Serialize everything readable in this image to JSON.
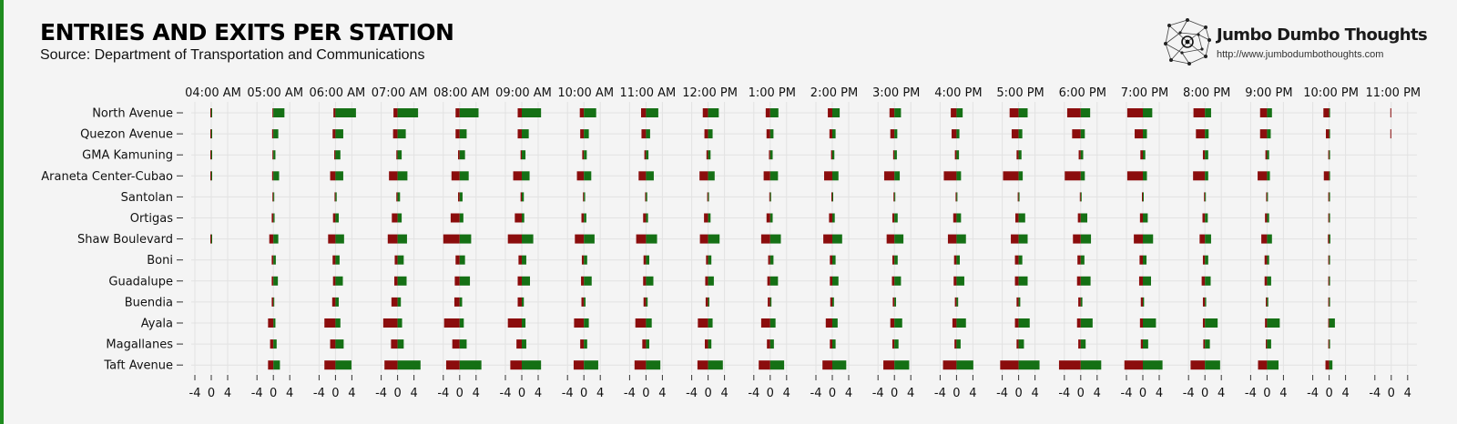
{
  "header": {
    "title": "ENTRIES AND EXITS PER STATION",
    "subtitle": "Source: Department of Transportation and Communications"
  },
  "brand": {
    "name": "Jumbo Dumbo Thoughts",
    "url": "http://www.jumbodumbothoughts.com"
  },
  "colors": {
    "exits": "#8b0d0d",
    "entries": "#157015",
    "accent_bar": "#1e8c1e",
    "background": "#f4f4f4",
    "grid": "#e2e2e2"
  },
  "chart_data": {
    "type": "bar",
    "orientation": "horizontal",
    "grid": true,
    "panel_ticks": [
      "-4",
      "0",
      "4"
    ],
    "x_range": [
      -6.5,
      6.5
    ],
    "hours": [
      "04:00 AM",
      "05:00 AM",
      "06:00 AM",
      "07:00 AM",
      "08:00 AM",
      "09:00 AM",
      "10:00 AM",
      "11:00 AM",
      "12:00 PM",
      "1:00 PM",
      "2:00 PM",
      "3:00 PM",
      "4:00 PM",
      "5:00 PM",
      "6:00 PM",
      "7:00 PM",
      "8:00 PM",
      "9:00 PM",
      "10:00 PM",
      "11:00 PM"
    ],
    "stations": [
      "North Avenue",
      "Quezon Avenue",
      "GMA Kamuning",
      "Araneta Center-Cubao",
      "Santolan",
      "Ortigas",
      "Shaw Boulevard",
      "Boni",
      "Guadalupe",
      "Buendia",
      "Ayala",
      "Magallanes",
      "Taft Avenue"
    ],
    "series": [
      {
        "key": "exits",
        "values": [
          [
            0.1,
            0.1,
            0.5,
            1.0,
            1.0,
            1.0,
            1.0,
            1.2,
            1.3,
            1.1,
            1.1,
            1.2,
            1.4,
            2.2,
            3.3,
            3.8,
            2.8,
            1.7,
            1.4,
            0.1
          ],
          [
            0.1,
            0.3,
            0.7,
            1.1,
            1.0,
            1.0,
            0.9,
            1.1,
            0.9,
            0.9,
            0.7,
            1.0,
            1.2,
            1.7,
            2.1,
            2.0,
            2.2,
            1.7,
            0.8,
            0.1
          ],
          [
            0.1,
            0.1,
            0.3,
            0.3,
            0.4,
            0.3,
            0.4,
            0.4,
            0.4,
            0.3,
            0.3,
            0.3,
            0.4,
            0.5,
            0.5,
            0.6,
            0.5,
            0.4,
            0.1,
            0.0
          ],
          [
            0.1,
            0.3,
            1.3,
            2.1,
            2.0,
            2.1,
            1.7,
            1.8,
            2.1,
            1.6,
            2.0,
            2.5,
            3.1,
            3.8,
            3.9,
            3.8,
            2.9,
            2.3,
            1.3,
            0.0
          ],
          [
            0.0,
            0.1,
            0.1,
            0.3,
            0.4,
            0.3,
            0.2,
            0.2,
            0.1,
            0.1,
            0.1,
            0.1,
            0.1,
            0.1,
            0.1,
            0.1,
            0.1,
            0.1,
            0.1,
            0.0
          ],
          [
            0.0,
            0.4,
            0.6,
            1.4,
            2.2,
            1.7,
            0.6,
            0.7,
            1.0,
            0.9,
            0.8,
            0.5,
            0.8,
            0.8,
            0.7,
            0.7,
            0.6,
            0.5,
            0.2,
            0.0
          ],
          [
            0.1,
            1.0,
            1.8,
            2.4,
            4.0,
            3.4,
            2.2,
            2.4,
            2.0,
            2.2,
            2.2,
            1.9,
            2.1,
            1.9,
            1.9,
            2.2,
            1.3,
            1.4,
            0.3,
            0.0
          ],
          [
            0.0,
            0.4,
            0.7,
            0.7,
            1.0,
            0.8,
            0.5,
            0.6,
            0.5,
            0.5,
            0.6,
            0.5,
            0.6,
            0.9,
            0.8,
            0.8,
            0.5,
            0.6,
            0.2,
            0.0
          ],
          [
            0.0,
            0.4,
            0.6,
            0.8,
            1.2,
            1.0,
            0.7,
            0.7,
            0.7,
            0.7,
            0.6,
            0.6,
            0.7,
            0.9,
            0.9,
            0.9,
            0.8,
            0.6,
            0.2,
            0.0
          ],
          [
            0.0,
            0.4,
            0.8,
            1.5,
            1.3,
            1.0,
            0.6,
            0.6,
            0.6,
            0.6,
            0.5,
            0.4,
            0.4,
            0.5,
            0.6,
            0.5,
            0.5,
            0.3,
            0.1,
            0.0
          ],
          [
            0.0,
            1.3,
            2.7,
            3.5,
            3.8,
            3.4,
            2.4,
            2.6,
            2.5,
            2.2,
            1.6,
            1.0,
            1.0,
            0.9,
            0.9,
            0.7,
            0.5,
            0.5,
            0.1,
            0.0
          ],
          [
            0.0,
            0.8,
            1.3,
            1.6,
            1.8,
            1.3,
            0.9,
            0.9,
            0.8,
            0.8,
            0.6,
            0.5,
            0.5,
            0.5,
            0.6,
            0.5,
            0.4,
            0.3,
            0.1,
            0.0
          ],
          [
            0.0,
            1.3,
            2.7,
            3.2,
            3.3,
            2.8,
            2.5,
            2.8,
            2.6,
            2.8,
            2.4,
            2.7,
            3.3,
            4.5,
            5.3,
            4.5,
            3.5,
            2.2,
            0.9,
            0.0
          ]
        ]
      },
      {
        "key": "entries",
        "values": [
          [
            0.2,
            2.7,
            5.0,
            5.0,
            4.6,
            4.7,
            3.0,
            3.0,
            2.6,
            2.0,
            1.8,
            1.6,
            1.5,
            2.2,
            2.3,
            2.3,
            1.5,
            1.2,
            0.2,
            0.0
          ],
          [
            0.2,
            1.2,
            1.9,
            2.0,
            1.7,
            1.7,
            1.2,
            1.0,
            1.1,
            0.8,
            0.8,
            0.7,
            0.7,
            0.9,
            1.0,
            1.0,
            0.9,
            0.9,
            0.1,
            0.0
          ],
          [
            0.1,
            0.5,
            1.2,
            1.0,
            1.3,
            0.9,
            0.7,
            0.6,
            0.6,
            0.6,
            0.5,
            0.6,
            0.6,
            0.7,
            0.6,
            0.6,
            0.8,
            0.5,
            0.1,
            0.0
          ],
          [
            0.2,
            1.4,
            1.9,
            2.4,
            2.2,
            1.9,
            1.8,
            1.9,
            1.6,
            1.9,
            1.5,
            1.3,
            1.1,
            1.0,
            1.0,
            1.0,
            0.8,
            0.7,
            0.2,
            0.0
          ],
          [
            0.0,
            0.1,
            0.3,
            0.6,
            0.7,
            0.5,
            0.3,
            0.3,
            0.2,
            0.2,
            0.2,
            0.2,
            0.2,
            0.2,
            0.2,
            0.2,
            0.2,
            0.1,
            0.1,
            0.0
          ],
          [
            0.0,
            0.3,
            0.8,
            1.0,
            0.9,
            0.6,
            0.6,
            0.5,
            0.6,
            0.6,
            0.6,
            0.8,
            1.1,
            1.6,
            1.6,
            1.2,
            0.7,
            0.5,
            0.1,
            0.0
          ],
          [
            0.1,
            1.2,
            2.1,
            2.3,
            2.8,
            2.8,
            2.6,
            2.7,
            2.8,
            2.6,
            2.4,
            2.2,
            2.3,
            2.2,
            2.5,
            2.5,
            1.5,
            1.2,
            0.3,
            0.0
          ],
          [
            0.0,
            0.6,
            1.0,
            1.5,
            1.3,
            1.1,
            0.8,
            0.8,
            0.8,
            0.8,
            0.8,
            0.8,
            0.8,
            0.9,
            0.9,
            0.9,
            0.8,
            0.5,
            0.1,
            0.0
          ],
          [
            0.0,
            1.1,
            1.8,
            2.2,
            2.5,
            2.0,
            1.9,
            1.8,
            1.4,
            1.9,
            1.5,
            1.6,
            1.9,
            2.2,
            2.4,
            2.0,
            1.4,
            1.0,
            0.1,
            0.0
          ],
          [
            0.0,
            0.2,
            0.8,
            0.8,
            0.6,
            0.5,
            0.4,
            0.4,
            0.3,
            0.3,
            0.4,
            0.4,
            0.4,
            0.4,
            0.4,
            0.3,
            0.3,
            0.3,
            0.1,
            0.0
          ],
          [
            0.0,
            0.5,
            1.2,
            1.1,
            1.0,
            0.9,
            1.2,
            1.4,
            1.1,
            1.3,
            1.3,
            1.9,
            2.3,
            2.7,
            2.9,
            3.2,
            3.1,
            3.1,
            1.4,
            0.0
          ],
          [
            0.0,
            0.8,
            2.0,
            1.5,
            1.7,
            1.1,
            0.8,
            0.8,
            0.8,
            0.9,
            0.8,
            1.0,
            1.0,
            1.3,
            1.2,
            1.3,
            1.2,
            1.0,
            0.2,
            0.0
          ],
          [
            0.0,
            1.6,
            3.9,
            5.6,
            5.3,
            4.7,
            3.5,
            3.5,
            3.6,
            3.4,
            3.4,
            3.6,
            4.1,
            5.1,
            5.0,
            4.8,
            3.7,
            2.8,
            0.8,
            0.0
          ]
        ]
      }
    ]
  }
}
